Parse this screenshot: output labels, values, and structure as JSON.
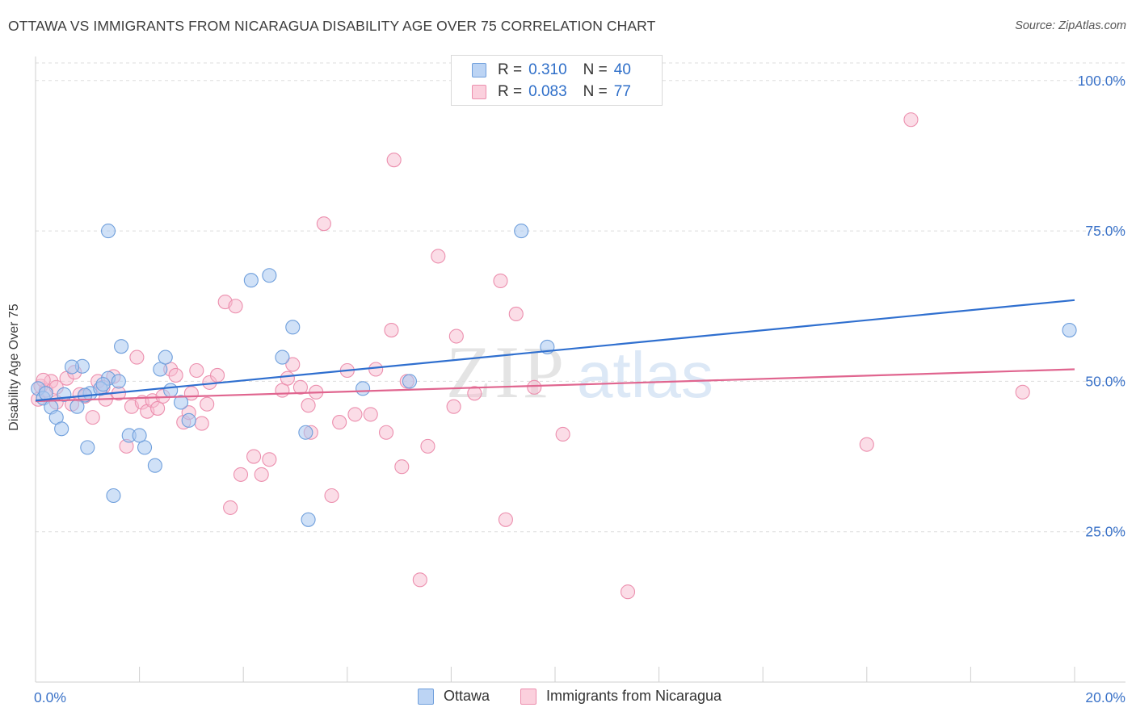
{
  "title": "OTTAWA VS IMMIGRANTS FROM NICARAGUA DISABILITY AGE OVER 75 CORRELATION CHART",
  "source": "Source: ZipAtlas.com",
  "watermark": {
    "zip": "ZIP",
    "atlas": "atlas"
  },
  "legend": {
    "rows": [
      {
        "r_label": "R =",
        "r_value": "0.310",
        "n_label": "N =",
        "n_value": "40"
      },
      {
        "r_label": "R =",
        "r_value": "0.083",
        "n_label": "N =",
        "n_value": "77"
      }
    ]
  },
  "bottom_legend": {
    "series1": "Ottawa",
    "series2": "Immigrants from Nicaragua"
  },
  "colors": {
    "ottawa_fill": "#aac8f0",
    "ottawa_stroke": "#6f9fdc",
    "ottawa_line": "#2f6fcf",
    "nic_fill": "#f7bcd0",
    "nic_stroke": "#ec8fae",
    "nic_line": "#e0658f",
    "tick_label": "#3a72c8",
    "grid": "#dddddd"
  },
  "chart_data": {
    "type": "scatter",
    "title": "OTTAWA VS IMMIGRANTS FROM NICARAGUA DISABILITY AGE OVER 75 CORRELATION CHART",
    "xlabel": "",
    "ylabel": "Disability Age Over 75",
    "xlim": [
      0,
      20
    ],
    "ylim": [
      0,
      104
    ],
    "x_tick_labels": [
      "0.0%",
      "20.0%"
    ],
    "y_ticks": [
      25,
      50,
      75,
      100
    ],
    "y_tick_labels": [
      "25.0%",
      "50.0%",
      "75.0%",
      "100.0%"
    ],
    "grid": true,
    "legend_position": "top-center",
    "series": [
      {
        "name": "Ottawa",
        "R": 0.31,
        "N": 40,
        "trend": {
          "x": [
            0,
            20
          ],
          "y": [
            46.8,
            63.5
          ]
        },
        "points": [
          [
            0.05,
            48.8
          ],
          [
            0.15,
            47.2
          ],
          [
            0.3,
            45.7
          ],
          [
            0.4,
            44.0
          ],
          [
            0.5,
            42.1
          ],
          [
            0.55,
            47.8
          ],
          [
            0.8,
            45.8
          ],
          [
            0.9,
            52.5
          ],
          [
            1.05,
            48.0
          ],
          [
            0.95,
            47.7
          ],
          [
            0.7,
            52.4
          ],
          [
            1.4,
            50.5
          ],
          [
            1.25,
            48.8
          ],
          [
            1.6,
            50.0
          ],
          [
            1.65,
            55.8
          ],
          [
            1.8,
            41.0
          ],
          [
            1.4,
            75.0
          ],
          [
            1.5,
            31.0
          ],
          [
            2.1,
            39.0
          ],
          [
            2.3,
            36.0
          ],
          [
            2.4,
            52.0
          ],
          [
            2.5,
            54.0
          ],
          [
            2.6,
            48.5
          ],
          [
            2.8,
            46.5
          ],
          [
            2.95,
            43.5
          ],
          [
            4.15,
            66.8
          ],
          [
            4.5,
            67.6
          ],
          [
            4.75,
            54.0
          ],
          [
            4.95,
            59.0
          ],
          [
            5.2,
            41.5
          ],
          [
            5.25,
            27.0
          ],
          [
            6.3,
            48.8
          ],
          [
            7.2,
            50.0
          ],
          [
            9.35,
            75.0
          ],
          [
            9.85,
            55.7
          ],
          [
            19.9,
            58.5
          ],
          [
            0.2,
            48.0
          ],
          [
            1.0,
            39.0
          ],
          [
            2.0,
            41.0
          ],
          [
            1.3,
            49.5
          ]
        ]
      },
      {
        "name": "Immigrants from Nicaragua",
        "R": 0.083,
        "N": 77,
        "trend": {
          "x": [
            0,
            20
          ],
          "y": [
            46.7,
            52.0
          ]
        },
        "points": [
          [
            0.05,
            47.0
          ],
          [
            0.1,
            49.2
          ],
          [
            0.2,
            48.5
          ],
          [
            0.3,
            50.0
          ],
          [
            0.4,
            49.0
          ],
          [
            0.6,
            50.5
          ],
          [
            0.7,
            46.2
          ],
          [
            0.75,
            51.5
          ],
          [
            0.85,
            47.8
          ],
          [
            0.95,
            47.5
          ],
          [
            1.1,
            44.0
          ],
          [
            1.2,
            50.0
          ],
          [
            1.3,
            49.0
          ],
          [
            1.35,
            47.0
          ],
          [
            1.5,
            50.8
          ],
          [
            1.75,
            39.2
          ],
          [
            1.85,
            45.8
          ],
          [
            1.95,
            54.0
          ],
          [
            2.05,
            46.5
          ],
          [
            2.15,
            45.0
          ],
          [
            2.25,
            46.8
          ],
          [
            2.35,
            45.5
          ],
          [
            2.45,
            47.5
          ],
          [
            2.6,
            52.0
          ],
          [
            2.7,
            51.0
          ],
          [
            2.85,
            43.2
          ],
          [
            2.95,
            44.8
          ],
          [
            3.1,
            51.8
          ],
          [
            3.2,
            43.0
          ],
          [
            3.3,
            46.2
          ],
          [
            3.35,
            49.8
          ],
          [
            3.5,
            51.0
          ],
          [
            3.65,
            63.2
          ],
          [
            3.75,
            29.0
          ],
          [
            3.85,
            62.5
          ],
          [
            3.95,
            34.5
          ],
          [
            4.2,
            37.5
          ],
          [
            4.35,
            34.5
          ],
          [
            4.5,
            37.0
          ],
          [
            4.75,
            48.5
          ],
          [
            4.85,
            50.5
          ],
          [
            4.95,
            52.8
          ],
          [
            5.1,
            49.0
          ],
          [
            5.25,
            46.0
          ],
          [
            5.3,
            41.5
          ],
          [
            5.4,
            48.2
          ],
          [
            5.55,
            76.2
          ],
          [
            5.7,
            31.0
          ],
          [
            5.85,
            43.2
          ],
          [
            6.0,
            51.8
          ],
          [
            6.15,
            44.5
          ],
          [
            6.45,
            44.5
          ],
          [
            6.55,
            52.0
          ],
          [
            6.75,
            41.5
          ],
          [
            6.85,
            58.5
          ],
          [
            6.9,
            86.8
          ],
          [
            7.05,
            35.8
          ],
          [
            7.15,
            50.0
          ],
          [
            7.4,
            17.0
          ],
          [
            7.55,
            39.2
          ],
          [
            7.75,
            70.8
          ],
          [
            8.05,
            45.8
          ],
          [
            8.1,
            57.5
          ],
          [
            8.45,
            48.0
          ],
          [
            8.95,
            66.7
          ],
          [
            9.05,
            27.0
          ],
          [
            9.25,
            61.2
          ],
          [
            9.6,
            49.0
          ],
          [
            10.15,
            41.2
          ],
          [
            11.4,
            15.0
          ],
          [
            16.0,
            39.5
          ],
          [
            16.85,
            93.5
          ],
          [
            19.0,
            48.2
          ],
          [
            0.4,
            46.5
          ],
          [
            1.6,
            48.0
          ],
          [
            0.15,
            50.2
          ],
          [
            3.0,
            48.0
          ]
        ]
      }
    ]
  }
}
